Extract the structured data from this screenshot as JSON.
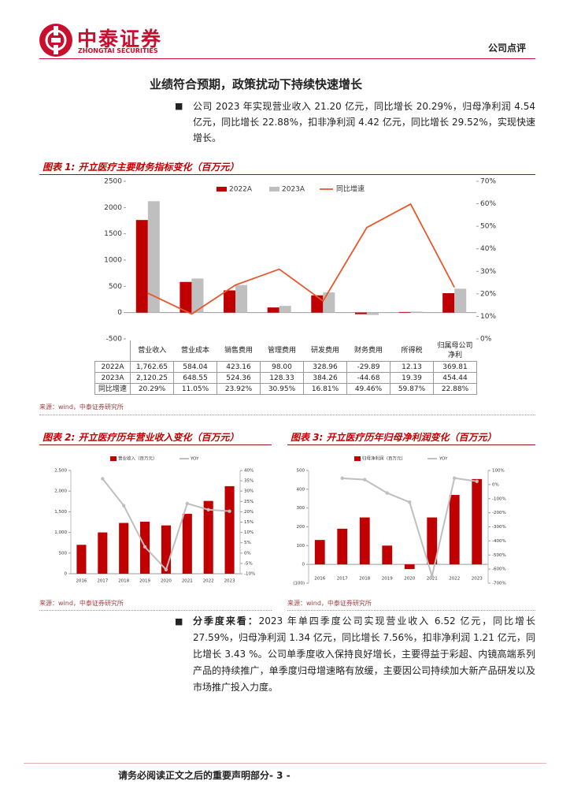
{
  "header": {
    "logo_cn": "中泰证券",
    "logo_en": "ZHONGTAI SECURITIES",
    "report_type": "公司点评"
  },
  "heading": "业绩符合预期，政策扰动下持续快速增长",
  "paragraphs": [
    {
      "text": "公司 2023 年实现营业收入 21.20 亿元，同比增长 20.29%，归母净利润 4.54 亿元，同比增长 22.88%，扣非净利润 4.42 亿元，同比增长 29.52%，实现快速增长。"
    },
    {
      "lead": "分季度来看：",
      "text": "2023 年单四季度公司实现营业收入 6.52 亿元，同比增长 27.59%，归母净利润 1.34 亿元，同比增长 7.56%，扣非净利润 1.21 亿元，同比增长 3.43 %。公司单季度收入保持良好增长，主要得益于彩超、内镜高端系列产品的持续推广，单季度归母增速略有放缓，主要因公司持续加大新产品研发以及市场推广投入力度。"
    }
  ],
  "chart_data": [
    {
      "type": "combo",
      "title": "图表 1: 开立医疗主要财务指标变化（百万元）",
      "source": "来源：wind，中泰证券研究所",
      "categories": [
        "营业收入",
        "营业成本",
        "销售费用",
        "管理费用",
        "研发费用",
        "财务费用",
        "所得税",
        "归属母公司净利"
      ],
      "series": [
        {
          "name": "2022A",
          "type": "bar",
          "color": "#c00000",
          "values": [
            1762.65,
            584.04,
            423.16,
            98.0,
            328.96,
            -29.89,
            12.13,
            369.81
          ],
          "value_labels": [
            "1,762.65",
            "584.04",
            "423.16",
            "98.00",
            "328.96",
            "-29.89",
            "12.13",
            "369.81"
          ]
        },
        {
          "name": "2023A",
          "type": "bar",
          "color": "#bfbfbf",
          "values": [
            2120.25,
            648.55,
            524.36,
            128.33,
            384.26,
            -44.68,
            19.39,
            454.44
          ],
          "value_labels": [
            "2,120.25",
            "648.55",
            "524.36",
            "128.33",
            "384.26",
            "-44.68",
            "19.39",
            "454.44"
          ]
        },
        {
          "name": "同比增速",
          "type": "line",
          "axis": "y2",
          "color": "#e8562a",
          "values": [
            20.29,
            11.05,
            23.92,
            30.95,
            16.81,
            49.46,
            59.87,
            22.88
          ],
          "value_labels": [
            "20.29%",
            "11.05%",
            "23.92%",
            "30.95%",
            "16.81%",
            "49.46%",
            "59.87%",
            "22.88%"
          ]
        }
      ],
      "ylim": [
        -500,
        2500
      ],
      "yticks": [
        -500,
        0,
        500,
        1000,
        1500,
        2000,
        2500
      ],
      "y2lim": [
        0,
        70
      ],
      "y2ticks": [
        {
          "value": 0,
          "label": "0%"
        },
        {
          "value": 10,
          "label": "10%"
        },
        {
          "value": 20,
          "label": "20%"
        },
        {
          "value": 30,
          "label": "30%"
        },
        {
          "value": 40,
          "label": "40%"
        },
        {
          "value": 50,
          "label": "50%"
        },
        {
          "value": 60,
          "label": "60%"
        },
        {
          "value": 70,
          "label": "70%"
        }
      ]
    },
    {
      "type": "combo",
      "title": "图表 2: 开立医疗历年营业收入变化（百万元）",
      "source": "来源：wind，中泰证券研究所",
      "categories": [
        "2016",
        "2017",
        "2018",
        "2019",
        "2020",
        "2021",
        "2022",
        "2023"
      ],
      "series": [
        {
          "name": "营业收入（百万元）",
          "type": "bar",
          "color": "#c00000",
          "values": [
            700,
            1000,
            1230,
            1260,
            1170,
            1450,
            1762.65,
            2120.25
          ]
        },
        {
          "name": "YOY",
          "type": "line",
          "axis": "y2",
          "color": "#bfbfbf",
          "markers": true,
          "values": [
            null,
            36,
            23,
            3,
            -8,
            24,
            21,
            20.29
          ]
        }
      ],
      "ylim": [
        0,
        2500
      ],
      "yticks": [
        0,
        500,
        {
          "value": 1000,
          "label": "1,000"
        },
        {
          "value": 1500,
          "label": "1,500"
        },
        {
          "value": 2000,
          "label": "2,000"
        },
        {
          "value": 2500,
          "label": "2,500"
        }
      ],
      "y2lim": [
        -10,
        40
      ],
      "y2ticks": [
        {
          "value": -10,
          "label": "-10%"
        },
        {
          "value": -5,
          "label": "-5%"
        },
        {
          "value": 0,
          "label": "0%"
        },
        {
          "value": 5,
          "label": "5%"
        },
        {
          "value": 10,
          "label": "10%"
        },
        {
          "value": 15,
          "label": "15%"
        },
        {
          "value": 20,
          "label": "20%"
        },
        {
          "value": 25,
          "label": "25%"
        },
        {
          "value": 30,
          "label": "30%"
        },
        {
          "value": 35,
          "label": "35%"
        },
        {
          "value": 40,
          "label": "40%"
        }
      ]
    },
    {
      "type": "combo",
      "title": "图表 3: 开立医疗历年归母净利润变化（百万元）",
      "source": "来源：wind，中泰证券研究所",
      "categories": [
        "2016",
        "2017",
        "2018",
        "2019",
        "2020",
        "2021",
        "2022",
        "2023"
      ],
      "series": [
        {
          "name": "归母净利润（百万元）",
          "type": "bar",
          "color": "#c00000",
          "values": [
            130,
            190,
            250,
            100,
            -25,
            250,
            369.81,
            454.44
          ]
        },
        {
          "name": "YOY",
          "type": "line",
          "axis": "y2",
          "color": "#bfbfbf",
          "markers": true,
          "values": [
            null,
            45,
            35,
            -60,
            -125,
            -650,
            46,
            22.88
          ]
        }
      ],
      "ylim": [
        -100,
        500
      ],
      "yticks": [
        {
          "value": -100,
          "label": "(100)"
        },
        0,
        100,
        200,
        300,
        400,
        500
      ],
      "y2lim": [
        -700,
        100
      ],
      "y2ticks": [
        {
          "value": -700,
          "label": "-700%"
        },
        {
          "value": -600,
          "label": "-600%"
        },
        {
          "value": -500,
          "label": "-500%"
        },
        {
          "value": -400,
          "label": "-400%"
        },
        {
          "value": -300,
          "label": "-300%"
        },
        {
          "value": -200,
          "label": "-200%"
        },
        {
          "value": -100,
          "label": "-100%"
        },
        {
          "value": 0,
          "label": "0%"
        },
        {
          "value": 100,
          "label": "100%"
        }
      ]
    }
  ],
  "footer": {
    "notice": "请务必阅读正文之后的重要声明部分",
    "page": "- 3 -"
  }
}
